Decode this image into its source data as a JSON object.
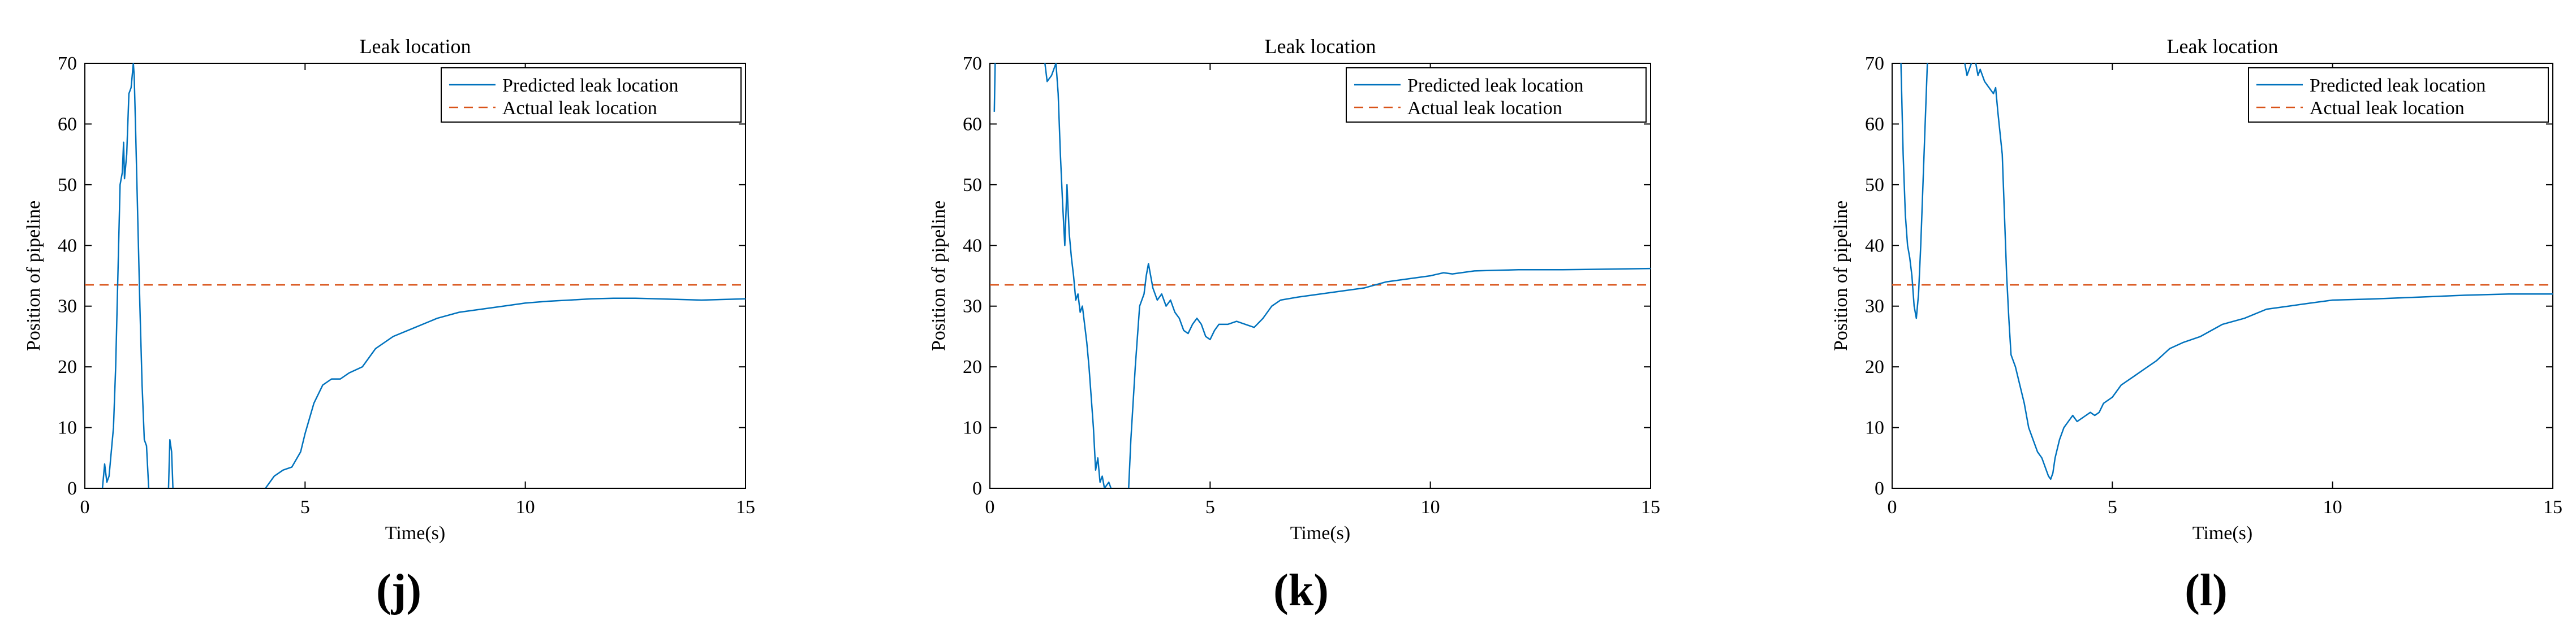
{
  "colors": {
    "predicted": "#0072BD",
    "actual": "#D95319",
    "axis": "#000000"
  },
  "chart_data": [
    {
      "panel_label": "(j)",
      "type": "line",
      "title": "Leak location",
      "xlabel": "Time(s)",
      "ylabel": "Position of pipeline",
      "xlim": [
        0,
        15
      ],
      "ylim": [
        0,
        70
      ],
      "xticks": [
        0,
        5,
        10,
        15
      ],
      "yticks": [
        0,
        10,
        20,
        30,
        40,
        50,
        60,
        70
      ],
      "legend": [
        "Predicted leak location",
        "Actual leak location"
      ],
      "series": [
        {
          "name": "Predicted leak location",
          "segments": [
            [
              [
                0.4,
                0
              ],
              [
                0.45,
                4
              ],
              [
                0.5,
                1
              ],
              [
                0.55,
                2
              ],
              [
                0.6,
                6
              ],
              [
                0.65,
                10
              ],
              [
                0.7,
                20
              ],
              [
                0.75,
                35
              ],
              [
                0.8,
                50
              ],
              [
                0.85,
                52
              ],
              [
                0.88,
                57
              ],
              [
                0.9,
                51
              ],
              [
                0.95,
                55
              ],
              [
                1.0,
                65
              ],
              [
                1.05,
                66
              ],
              [
                1.1,
                70
              ],
              [
                1.12,
                68
              ],
              [
                1.15,
                60
              ],
              [
                1.2,
                45
              ],
              [
                1.25,
                30
              ],
              [
                1.3,
                17
              ],
              [
                1.35,
                8
              ],
              [
                1.4,
                7
              ],
              [
                1.45,
                0
              ]
            ],
            [
              [
                1.9,
                0
              ],
              [
                1.93,
                8
              ],
              [
                1.97,
                6
              ],
              [
                2.0,
                0
              ]
            ],
            [
              [
                4.1,
                0
              ],
              [
                4.3,
                2
              ],
              [
                4.5,
                3
              ],
              [
                4.7,
                3.5
              ],
              [
                4.9,
                6
              ],
              [
                5.0,
                9
              ],
              [
                5.2,
                14
              ],
              [
                5.4,
                17
              ],
              [
                5.6,
                18
              ],
              [
                5.8,
                18
              ],
              [
                6.0,
                19
              ],
              [
                6.3,
                20
              ],
              [
                6.6,
                23
              ],
              [
                7.0,
                25
              ],
              [
                7.5,
                26.5
              ],
              [
                8.0,
                28
              ],
              [
                8.5,
                29
              ],
              [
                9.0,
                29.5
              ],
              [
                9.5,
                30
              ],
              [
                10.0,
                30.5
              ],
              [
                10.5,
                30.8
              ],
              [
                11.0,
                31
              ],
              [
                11.5,
                31.2
              ],
              [
                12.0,
                31.3
              ],
              [
                12.5,
                31.3
              ],
              [
                13.0,
                31.2
              ],
              [
                13.5,
                31.1
              ],
              [
                14.0,
                31.0
              ],
              [
                14.5,
                31.1
              ],
              [
                15.0,
                31.2
              ]
            ]
          ]
        },
        {
          "name": "Actual leak location",
          "constant": 33.5
        }
      ]
    },
    {
      "panel_label": "(k)",
      "type": "line",
      "title": "Leak location",
      "xlabel": "Time(s)",
      "ylabel": "Position of pipeline",
      "xlim": [
        0,
        15
      ],
      "ylim": [
        0,
        70
      ],
      "xticks": [
        0,
        5,
        10,
        15
      ],
      "yticks": [
        0,
        10,
        20,
        30,
        40,
        50,
        60,
        70
      ],
      "legend": [
        "Predicted leak location",
        "Actual leak location"
      ],
      "series": [
        {
          "name": "Predicted leak location",
          "segments": [
            [
              [
                0.1,
                62
              ],
              [
                0.12,
                70
              ]
            ],
            [
              [
                1.25,
                70
              ],
              [
                1.3,
                67
              ],
              [
                1.4,
                68
              ],
              [
                1.5,
                70
              ]
            ],
            [
              [
                1.5,
                70
              ],
              [
                1.55,
                65
              ],
              [
                1.6,
                55
              ],
              [
                1.65,
                47
              ],
              [
                1.7,
                40
              ],
              [
                1.75,
                50
              ],
              [
                1.8,
                42
              ],
              [
                1.85,
                38
              ],
              [
                1.9,
                35
              ],
              [
                1.95,
                31
              ],
              [
                2.0,
                32
              ],
              [
                2.05,
                29
              ],
              [
                2.1,
                30
              ],
              [
                2.15,
                27
              ],
              [
                2.2,
                24
              ],
              [
                2.25,
                20
              ],
              [
                2.3,
                15
              ],
              [
                2.35,
                10
              ],
              [
                2.4,
                3
              ],
              [
                2.45,
                5
              ],
              [
                2.5,
                1
              ],
              [
                2.55,
                2
              ],
              [
                2.6,
                0
              ],
              [
                2.7,
                1
              ],
              [
                2.75,
                0
              ]
            ],
            [
              [
                3.15,
                0
              ],
              [
                3.2,
                8
              ],
              [
                3.3,
                20
              ],
              [
                3.4,
                30
              ],
              [
                3.5,
                32
              ],
              [
                3.55,
                35
              ],
              [
                3.6,
                37
              ],
              [
                3.7,
                33
              ],
              [
                3.8,
                31
              ],
              [
                3.9,
                32
              ],
              [
                4.0,
                30
              ],
              [
                4.1,
                31
              ],
              [
                4.2,
                29
              ],
              [
                4.3,
                28
              ],
              [
                4.4,
                26
              ],
              [
                4.5,
                25.5
              ],
              [
                4.6,
                27
              ],
              [
                4.7,
                28
              ],
              [
                4.8,
                27
              ],
              [
                4.9,
                25
              ],
              [
                5.0,
                24.5
              ],
              [
                5.1,
                26
              ],
              [
                5.2,
                27
              ],
              [
                5.4,
                27
              ],
              [
                5.6,
                27.5
              ],
              [
                5.8,
                27
              ],
              [
                6.0,
                26.5
              ],
              [
                6.2,
                28
              ],
              [
                6.4,
                30
              ],
              [
                6.6,
                31
              ],
              [
                7.0,
                31.5
              ],
              [
                7.5,
                32
              ],
              [
                8.0,
                32.5
              ],
              [
                8.5,
                33
              ],
              [
                9.0,
                34
              ],
              [
                9.5,
                34.5
              ],
              [
                10.0,
                35
              ],
              [
                10.3,
                35.5
              ],
              [
                10.5,
                35.3
              ],
              [
                11.0,
                35.8
              ],
              [
                11.5,
                35.9
              ],
              [
                12.0,
                36
              ],
              [
                13.0,
                36
              ],
              [
                14.0,
                36.1
              ],
              [
                15.0,
                36.2
              ]
            ]
          ]
        },
        {
          "name": "Actual leak location",
          "constant": 33.5
        }
      ]
    },
    {
      "panel_label": "(l)",
      "type": "line",
      "title": "Leak location",
      "xlabel": "Time(s)",
      "ylabel": "Position of pipeline",
      "xlim": [
        0,
        15
      ],
      "ylim": [
        0,
        70
      ],
      "xticks": [
        0,
        5,
        10,
        15
      ],
      "yticks": [
        0,
        10,
        20,
        30,
        40,
        50,
        60,
        70
      ],
      "legend": [
        "Predicted leak location",
        "Actual leak location"
      ],
      "series": [
        {
          "name": "Predicted leak location",
          "segments": [
            [
              [
                0.2,
                70
              ],
              [
                0.25,
                55
              ],
              [
                0.3,
                45
              ],
              [
                0.35,
                40
              ],
              [
                0.4,
                38
              ],
              [
                0.45,
                35
              ],
              [
                0.5,
                30
              ],
              [
                0.55,
                28
              ],
              [
                0.6,
                32
              ],
              [
                0.65,
                40
              ],
              [
                0.7,
                50
              ],
              [
                0.75,
                60
              ],
              [
                0.8,
                70
              ]
            ],
            [
              [
                1.65,
                70
              ],
              [
                1.7,
                68
              ],
              [
                1.8,
                70
              ]
            ],
            [
              [
                1.9,
                70
              ],
              [
                1.95,
                68
              ],
              [
                2.0,
                69
              ],
              [
                2.1,
                67
              ],
              [
                2.2,
                66
              ],
              [
                2.3,
                65
              ],
              [
                2.35,
                66
              ],
              [
                2.4,
                62
              ],
              [
                2.5,
                55
              ],
              [
                2.55,
                45
              ],
              [
                2.6,
                35
              ],
              [
                2.65,
                28
              ],
              [
                2.7,
                22
              ],
              [
                2.8,
                20
              ],
              [
                2.9,
                17
              ],
              [
                3.0,
                14
              ],
              [
                3.1,
                10
              ],
              [
                3.2,
                8
              ],
              [
                3.3,
                6
              ],
              [
                3.4,
                5
              ],
              [
                3.45,
                4
              ],
              [
                3.5,
                3
              ],
              [
                3.55,
                2
              ],
              [
                3.6,
                1.5
              ],
              [
                3.65,
                2.5
              ],
              [
                3.7,
                5
              ],
              [
                3.8,
                8
              ],
              [
                3.9,
                10
              ],
              [
                4.0,
                11
              ],
              [
                4.1,
                12
              ],
              [
                4.2,
                11
              ],
              [
                4.3,
                11.5
              ],
              [
                4.4,
                12
              ],
              [
                4.5,
                12.5
              ],
              [
                4.6,
                12
              ],
              [
                4.7,
                12.5
              ],
              [
                4.8,
                14
              ],
              [
                5.0,
                15
              ],
              [
                5.2,
                17
              ],
              [
                5.5,
                18.5
              ],
              [
                5.8,
                20
              ],
              [
                6.0,
                21
              ],
              [
                6.3,
                23
              ],
              [
                6.6,
                24
              ],
              [
                7.0,
                25
              ],
              [
                7.5,
                27
              ],
              [
                8.0,
                28
              ],
              [
                8.5,
                29.5
              ],
              [
                9.0,
                30
              ],
              [
                9.5,
                30.5
              ],
              [
                10.0,
                31
              ],
              [
                11.0,
                31.2
              ],
              [
                12.0,
                31.5
              ],
              [
                13.0,
                31.8
              ],
              [
                14.0,
                32
              ],
              [
                15.0,
                32
              ]
            ]
          ]
        },
        {
          "name": "Actual leak location",
          "constant": 33.5
        }
      ]
    }
  ]
}
